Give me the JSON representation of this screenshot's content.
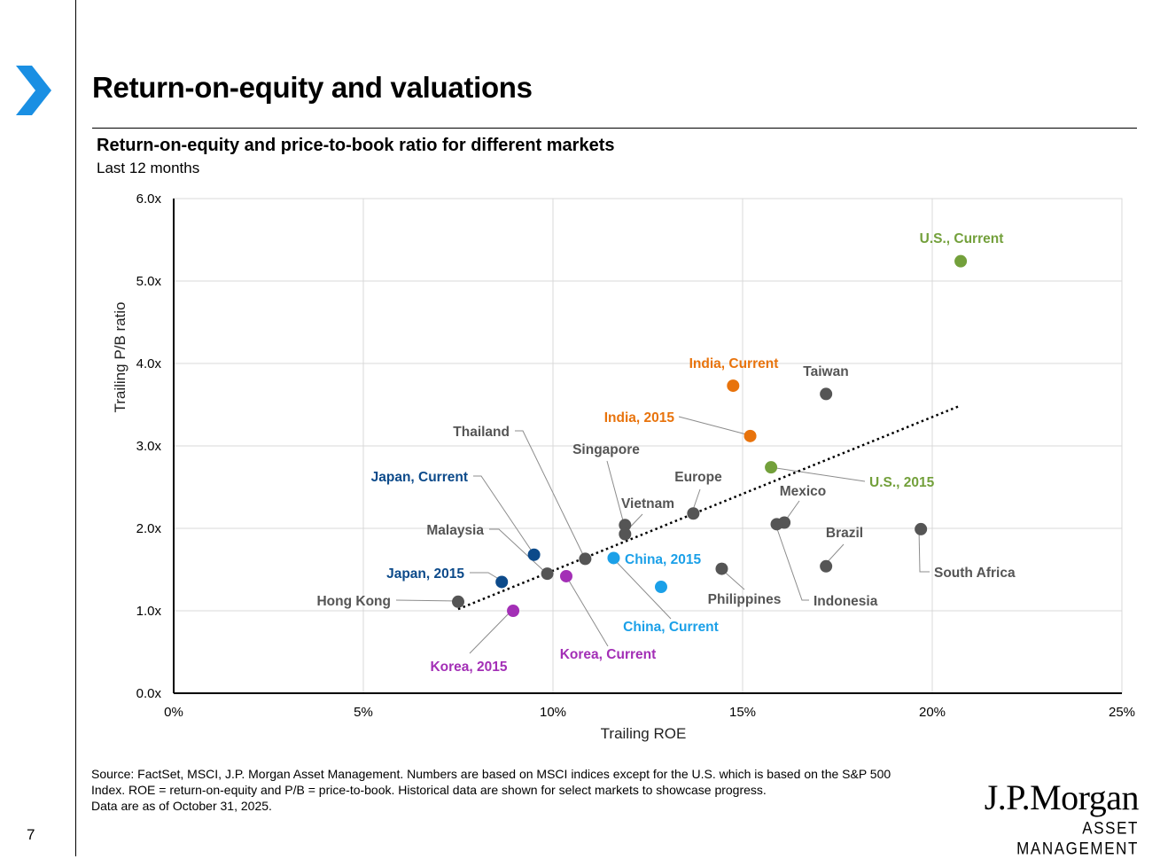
{
  "page": {
    "title": "Return-on-equity and valuations",
    "page_number": "7"
  },
  "chart_data": {
    "type": "scatter",
    "title": "Return-on-equity and price-to-book ratio for different markets",
    "subtitle": "Last 12 months",
    "xlabel": "Trailing ROE",
    "ylabel": "Trailing P/B ratio",
    "xlim": [
      0,
      25
    ],
    "ylim": [
      0,
      6
    ],
    "x_ticks": [
      0,
      5,
      10,
      15,
      20,
      25
    ],
    "x_tick_labels": [
      "0%",
      "5%",
      "10%",
      "15%",
      "20%",
      "25%"
    ],
    "y_ticks": [
      0,
      1,
      2,
      3,
      4,
      5,
      6
    ],
    "y_tick_labels": [
      "0.0x",
      "1.0x",
      "2.0x",
      "3.0x",
      "4.0x",
      "5.0x",
      "6.0x"
    ],
    "grid": true,
    "colors": {
      "gray": "#555555",
      "navy": "#0c4a8a",
      "sky": "#1ba0e8",
      "orange": "#e8730c",
      "green": "#73a03b",
      "purple": "#a32fb6",
      "gridline": "#d9d9d9",
      "trend": "#000000",
      "leader": "#8c8c8c"
    },
    "points": [
      {
        "label": "U.S., Current",
        "x": 20.75,
        "y": 5.24,
        "color": "green",
        "bold": true
      },
      {
        "label": "India, Current",
        "x": 14.75,
        "y": 3.73,
        "color": "orange",
        "bold": true
      },
      {
        "label": "Taiwan",
        "x": 17.2,
        "y": 3.63,
        "color": "gray",
        "bold": true
      },
      {
        "label": "India, 2015",
        "x": 15.2,
        "y": 3.12,
        "color": "orange",
        "bold": true
      },
      {
        "label": "U.S., 2015",
        "x": 15.75,
        "y": 2.74,
        "color": "green",
        "bold": true
      },
      {
        "label": "Europe",
        "x": 13.7,
        "y": 2.18,
        "color": "gray",
        "bold": true
      },
      {
        "label": "Mexico",
        "x": 16.1,
        "y": 2.07,
        "color": "gray",
        "bold": true
      },
      {
        "label": "Indonesia",
        "x": 15.9,
        "y": 2.05,
        "color": "gray",
        "bold": true
      },
      {
        "label": "Singapore",
        "x": 11.9,
        "y": 2.04,
        "color": "gray",
        "bold": true
      },
      {
        "label": "Vietnam",
        "x": 11.9,
        "y": 1.93,
        "color": "gray",
        "bold": true
      },
      {
        "label": "South Africa",
        "x": 19.7,
        "y": 1.99,
        "color": "gray",
        "bold": true
      },
      {
        "label": "Japan, Current",
        "x": 9.5,
        "y": 1.68,
        "color": "navy",
        "bold": true
      },
      {
        "label": "Thailand",
        "x": 10.85,
        "y": 1.63,
        "color": "gray",
        "bold": true
      },
      {
        "label": "China, 2015",
        "x": 11.6,
        "y": 1.64,
        "color": "sky",
        "bold": true
      },
      {
        "label": "Brazil",
        "x": 17.2,
        "y": 1.54,
        "color": "gray",
        "bold": true
      },
      {
        "label": "Philippines",
        "x": 14.45,
        "y": 1.51,
        "color": "gray",
        "bold": true
      },
      {
        "label": "Malaysia",
        "x": 9.85,
        "y": 1.45,
        "color": "gray",
        "bold": true
      },
      {
        "label": "Korea, Current",
        "x": 10.35,
        "y": 1.42,
        "color": "purple",
        "bold": true
      },
      {
        "label": "Japan, 2015",
        "x": 8.65,
        "y": 1.35,
        "color": "navy",
        "bold": true
      },
      {
        "label": "China, Current",
        "x": 12.85,
        "y": 1.29,
        "color": "sky",
        "bold": true
      },
      {
        "label": "Hong Kong",
        "x": 7.5,
        "y": 1.11,
        "color": "gray",
        "bold": true
      },
      {
        "label": "Korea, 2015",
        "x": 8.95,
        "y": 1.0,
        "color": "purple",
        "bold": true
      }
    ],
    "trendline": {
      "x": [
        7.5,
        20.75
      ],
      "y": [
        1.02,
        3.49
      ],
      "style": "dotted"
    }
  },
  "footer": {
    "source_lines": [
      "Source: FactSet, MSCI, J.P. Morgan Asset Management. Numbers are based on MSCI indices except for the U.S. which is based on the S&P 500",
      "Index. ROE = return-on-equity and P/B = price-to-book. Historical data are shown for select markets to showcase progress.",
      "Data are as of October 31, 2025."
    ],
    "logo_name": "J.P.Morgan",
    "logo_subtitle": "ASSET MANAGEMENT"
  }
}
